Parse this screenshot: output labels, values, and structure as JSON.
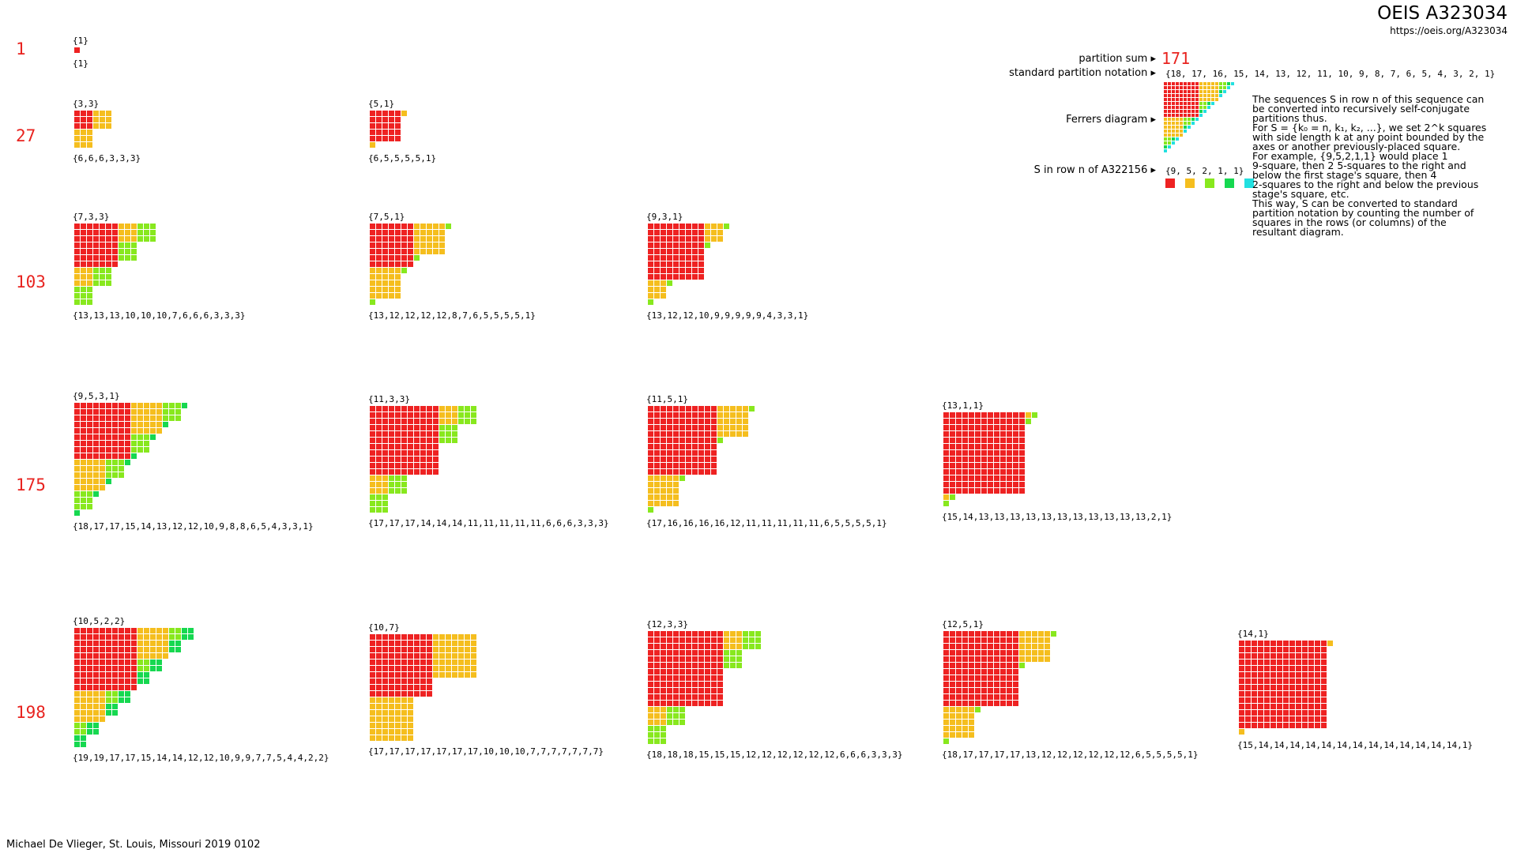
{
  "header": {
    "title": "OEIS A323034",
    "url": "https://oeis.org/A323034"
  },
  "credit": "Michael De Vlieger, St. Louis, Missouri 2019 0102",
  "colors": {
    "stage1": "#ee2222",
    "stage2": "#f5be1e",
    "stage3": "#88e81e",
    "stage4": "#16d850",
    "stage5": "#22e0e0"
  },
  "legend": {
    "partition_sum_label": "partition sum ▸",
    "partition_sum_value": "171",
    "standard_label": "standard partition notation ▸",
    "standard_value": "{18, 17, 16, 15, 14, 13, 12, 11, 10, 9, 8, 7, 6, 5, 4, 3, 2, 1}",
    "ferrers_label": "Ferrers diagram ▸",
    "s_label": "S in row n of A322156 ▸",
    "s_value": "{9, 5, 2, 1, 1}",
    "s": [
      9,
      5,
      2,
      1,
      1
    ]
  },
  "description": [
    "The sequences S in row n of this sequence can",
    "be converted into recursively self-conjugate",
    "partitions thus.",
    "For S = {k₀ = n, k₁, k₂, ...}, we set 2^k squares",
    "with side length k at any point bounded by the",
    "axes or another previously-placed square.",
    "For example, {9,5,2,1,1} would place 1",
    "9-square, then 2 5-squares to the right and",
    "below the first stage's square, then 4",
    "2-squares to the right and below the previous",
    "stage's square, etc.",
    "This way, S can be converted to standard",
    "partition notation by counting the number of",
    "squares in the rows (or columns) of the",
    "resultant diagram."
  ],
  "rows": [
    {
      "sum": "1",
      "items": [
        {
          "s": [
            1
          ],
          "s_label": "{1}",
          "p_label": "{1}"
        }
      ]
    },
    {
      "sum": "27",
      "items": [
        {
          "s": [
            3,
            3
          ],
          "s_label": "{3,3}",
          "p_label": "{6,6,6,3,3,3}"
        },
        {
          "s": [
            5,
            1
          ],
          "s_label": "{5,1}",
          "p_label": "{6,5,5,5,5,1}"
        }
      ]
    },
    {
      "sum": "103",
      "items": [
        {
          "s": [
            7,
            3,
            3
          ],
          "s_label": "{7,3,3}",
          "p_label": "{13,13,13,10,10,10,7,6,6,6,3,3,3}"
        },
        {
          "s": [
            7,
            5,
            1
          ],
          "s_label": "{7,5,1}",
          "p_label": "{13,12,12,12,12,8,7,6,5,5,5,5,1}"
        },
        {
          "s": [
            9,
            3,
            1
          ],
          "s_label": "{9,3,1}",
          "p_label": "{13,12,12,10,9,9,9,9,9,4,3,3,1}"
        }
      ]
    },
    {
      "sum": "175",
      "items": [
        {
          "s": [
            9,
            5,
            3,
            1
          ],
          "s_label": "{9,5,3,1}",
          "p_label": "{18,17,17,15,14,13,12,12,10,9,8,8,6,5,4,3,3,1}"
        },
        {
          "s": [
            11,
            3,
            3
          ],
          "s_label": "{11,3,3}",
          "p_label": "{17,17,17,14,14,14,11,11,11,11,11,6,6,6,3,3,3}"
        },
        {
          "s": [
            11,
            5,
            1
          ],
          "s_label": "{11,5,1}",
          "p_label": "{17,16,16,16,16,12,11,11,11,11,11,6,5,5,5,5,1}"
        },
        {
          "s": [
            13,
            1,
            1
          ],
          "s_label": "{13,1,1}",
          "p_label": "{15,14,13,13,13,13,13,13,13,13,13,13,13,2,1}"
        }
      ]
    },
    {
      "sum": "198",
      "items": [
        {
          "s": [
            10,
            5,
            2,
            2
          ],
          "s_label": "{10,5,2,2}",
          "p_label": "{19,19,17,17,15,14,14,12,12,10,9,9,7,7,5,4,4,2,2}"
        },
        {
          "s": [
            10,
            7
          ],
          "s_label": "{10,7}",
          "p_label": "{17,17,17,17,17,17,17,10,10,10,7,7,7,7,7,7,7}"
        },
        {
          "s": [
            12,
            3,
            3
          ],
          "s_label": "{12,3,3}",
          "p_label": "{18,18,18,15,15,15,12,12,12,12,12,12,6,6,6,3,3,3}"
        },
        {
          "s": [
            12,
            5,
            1
          ],
          "s_label": "{12,5,1}",
          "p_label": "{18,17,17,17,17,13,12,12,12,12,12,12,6,5,5,5,5,1}"
        },
        {
          "s": [
            14,
            1
          ],
          "s_label": "{14,1}",
          "p_label": "{15,14,14,14,14,14,14,14,14,14,14,14,14,14,1}"
        }
      ]
    }
  ]
}
